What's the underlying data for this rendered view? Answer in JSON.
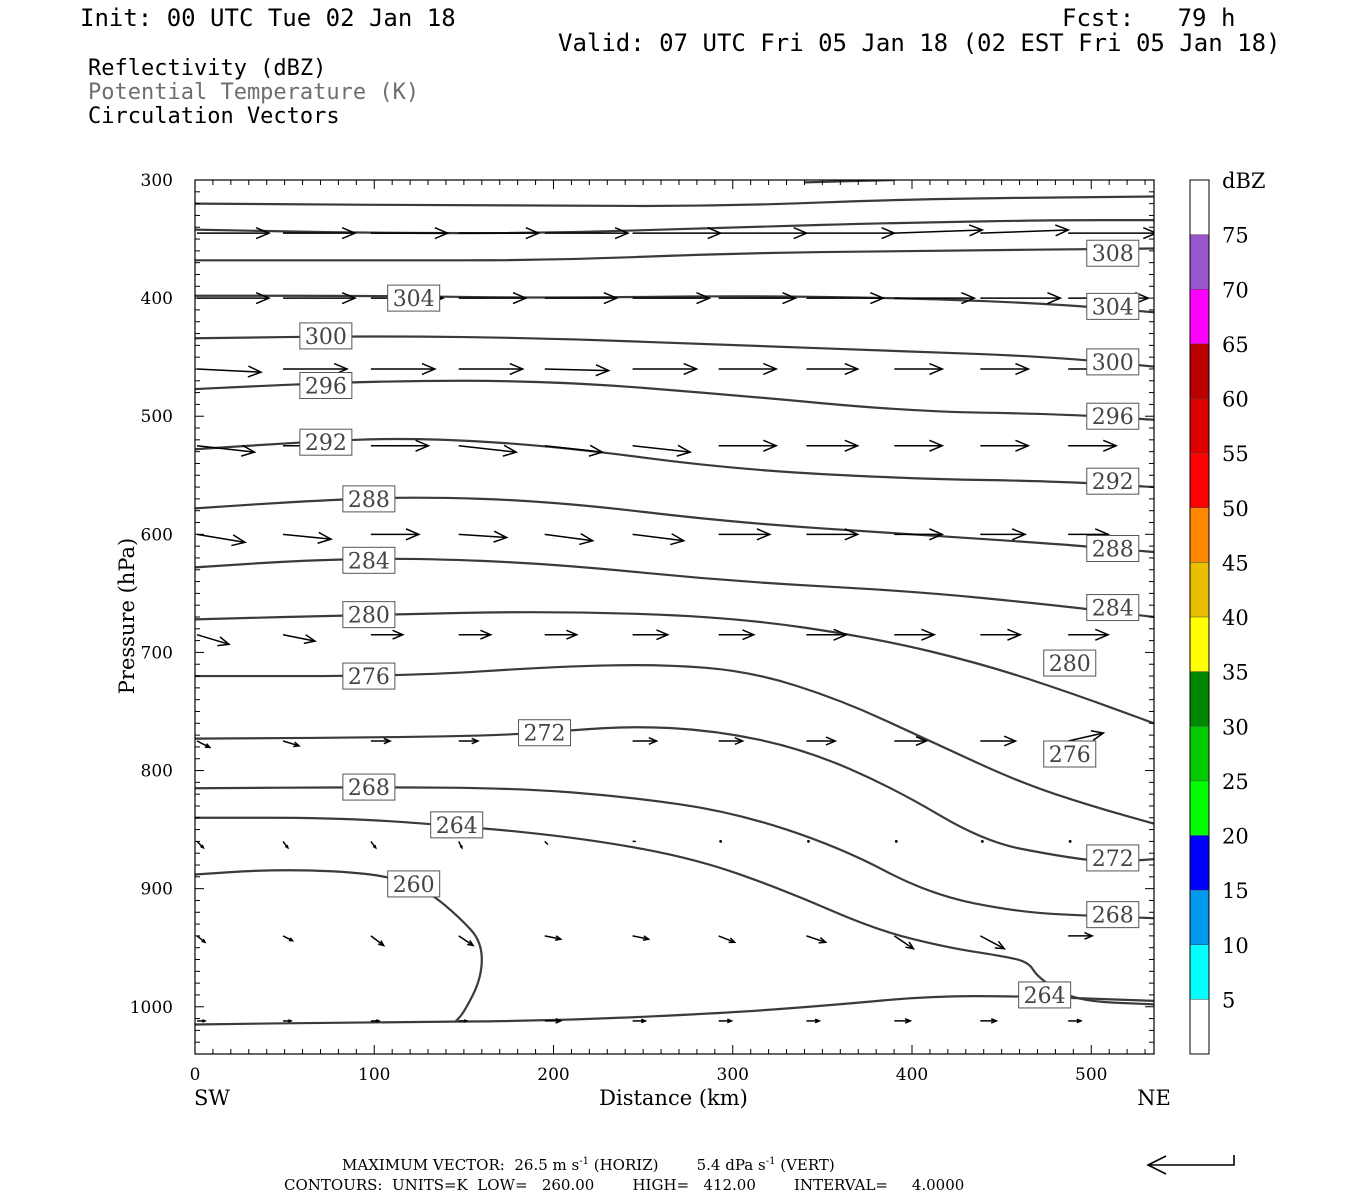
{
  "header": {
    "init": "Init: 00 UTC Tue 02 Jan 18",
    "fcst": "Fcst:   79 h",
    "valid": "Valid: 07 UTC Fri 05 Jan 18 (02 EST Fri 05 Jan 18)"
  },
  "fields": [
    "Reflectivity (dBZ)",
    "Potential Temperature (K)",
    "Circulation Vectors"
  ],
  "footer": {
    "max_prefix": "MAXIMUM VECTOR:  26.5 m s",
    "exp": "-1",
    "horiz": " (HORIZ)        5.4 dPa s",
    "vert": " (VERT)",
    "contours": "CONTOURS:  UNITS=K  LOW=   260.00        HIGH=   412.00        INTERVAL=     4.0000"
  },
  "chart_data": {
    "type": "line",
    "xlabel": "Distance (km)",
    "ylabel": "Pressure (hPa)",
    "x_ticks": [
      0,
      100,
      200,
      300,
      400,
      500
    ],
    "y_ticks": [
      300,
      400,
      500,
      600,
      700,
      800,
      900,
      1000
    ],
    "xlim": [
      0,
      535
    ],
    "ylim": [
      300,
      1040
    ],
    "y_inverted": true,
    "x_end_labels": {
      "left": "SW",
      "right": "NE"
    },
    "colorbar": {
      "title": "dBZ",
      "labels": [
        "75",
        "70",
        "65",
        "60",
        "55",
        "50",
        "45",
        "40",
        "35",
        "30",
        "25",
        "20",
        "15",
        "10",
        "5"
      ],
      "colors": [
        "#ffffff",
        "#00ffff",
        "#0099ee",
        "#0000ff",
        "#00ff00",
        "#00cc00",
        "#008800",
        "#ffff00",
        "#e8c000",
        "#ff8800",
        "#ff0000",
        "#dd0000",
        "#bb0000",
        "#ff00ff",
        "#9955cc",
        "#ffffff"
      ]
    },
    "series": [
      {
        "name": "308",
        "x": [
          0,
          100,
          200,
          300,
          400,
          535
        ],
        "y": [
          368,
          368,
          368,
          362,
          360,
          358
        ],
        "labels": [
          {
            "text": "308",
            "x": 512,
            "y": 362
          }
        ]
      },
      {
        "name": "304",
        "x": [
          0,
          100,
          200,
          300,
          400,
          480,
          535
        ],
        "y": [
          398,
          398,
          400,
          398,
          400,
          405,
          412
        ],
        "labels": [
          {
            "text": "304",
            "x": 122,
            "y": 400
          },
          {
            "text": "304",
            "x": 512,
            "y": 407
          }
        ]
      },
      {
        "name": "300",
        "x": [
          0,
          100,
          200,
          300,
          400,
          480,
          535
        ],
        "y": [
          434,
          432,
          434,
          440,
          445,
          450,
          458
        ],
        "labels": [
          {
            "text": "300",
            "x": 73,
            "y": 432
          },
          {
            "text": "300",
            "x": 512,
            "y": 454
          }
        ]
      },
      {
        "name": "296",
        "x": [
          0,
          100,
          200,
          300,
          400,
          480,
          535
        ],
        "y": [
          477,
          470,
          470,
          482,
          496,
          498,
          503
        ],
        "labels": [
          {
            "text": "296",
            "x": 73,
            "y": 474
          },
          {
            "text": "296",
            "x": 512,
            "y": 500
          }
        ]
      },
      {
        "name": "292",
        "x": [
          0,
          60,
          120,
          200,
          300,
          400,
          480,
          535
        ],
        "y": [
          528,
          522,
          518,
          525,
          545,
          553,
          555,
          560
        ],
        "labels": [
          {
            "text": "292",
            "x": 73,
            "y": 522
          },
          {
            "text": "292",
            "x": 512,
            "y": 555
          }
        ]
      },
      {
        "name": "288",
        "x": [
          0,
          60,
          120,
          200,
          300,
          400,
          480,
          535
        ],
        "y": [
          578,
          572,
          568,
          572,
          590,
          600,
          608,
          615
        ],
        "labels": [
          {
            "text": "288",
            "x": 97,
            "y": 570
          },
          {
            "text": "288",
            "x": 512,
            "y": 612
          }
        ]
      },
      {
        "name": "284",
        "x": [
          0,
          60,
          120,
          200,
          300,
          400,
          480,
          535
        ],
        "y": [
          628,
          622,
          620,
          625,
          640,
          648,
          660,
          670
        ],
        "labels": [
          {
            "text": "284",
            "x": 97,
            "y": 622
          },
          {
            "text": "284",
            "x": 512,
            "y": 662
          }
        ]
      },
      {
        "name": "280",
        "x": [
          0,
          100,
          200,
          300,
          380,
          440,
          490,
          535
        ],
        "y": [
          672,
          668,
          665,
          670,
          688,
          710,
          735,
          760
        ],
        "labels": [
          {
            "text": "280",
            "x": 97,
            "y": 668
          },
          {
            "text": "280",
            "x": 488,
            "y": 709
          }
        ]
      },
      {
        "name": "276",
        "x": [
          0,
          120,
          200,
          260,
          310,
          360,
          410,
          460,
          500,
          535
        ],
        "y": [
          720,
          720,
          712,
          710,
          716,
          740,
          775,
          810,
          830,
          845
        ],
        "labels": [
          {
            "text": "276",
            "x": 97,
            "y": 720
          },
          {
            "text": "276",
            "x": 488,
            "y": 786
          }
        ]
      },
      {
        "name": "272",
        "x": [
          0,
          100,
          180,
          240,
          290,
          340,
          390,
          440,
          480,
          510,
          535
        ],
        "y": [
          773,
          772,
          770,
          762,
          766,
          782,
          815,
          860,
          872,
          878,
          875
        ],
        "labels": [
          {
            "text": "272",
            "x": 195,
            "y": 768
          },
          {
            "text": "272",
            "x": 512,
            "y": 874
          }
        ]
      },
      {
        "name": "268",
        "x": [
          0,
          100,
          180,
          240,
          300,
          360,
          410,
          460,
          500,
          535
        ],
        "y": [
          815,
          814,
          815,
          822,
          835,
          865,
          905,
          920,
          923,
          925
        ],
        "labels": [
          {
            "text": "268",
            "x": 97,
            "y": 814
          },
          {
            "text": "268",
            "x": 512,
            "y": 922
          }
        ]
      },
      {
        "name": "264",
        "x": [
          0,
          80,
          150,
          220,
          280,
          330,
          380,
          420,
          450,
          465,
          470,
          490,
          535
        ],
        "y": [
          840,
          840,
          847,
          858,
          875,
          902,
          935,
          950,
          957,
          962,
          975,
          995,
          998
        ],
        "labels": [
          {
            "text": "264",
            "x": 146,
            "y": 846
          },
          {
            "text": "264",
            "x": 474,
            "y": 990
          }
        ]
      },
      {
        "name": "260",
        "x": [
          0,
          40,
          80,
          110,
          130,
          148,
          160,
          160,
          150,
          145
        ],
        "y": [
          888,
          884,
          885,
          890,
          902,
          925,
          945,
          975,
          1005,
          1013
        ],
        "labels": [
          {
            "text": "260",
            "x": 122,
            "y": 896
          }
        ]
      },
      {
        "name": "320",
        "x": [
          0,
          200,
          300,
          400,
          535
        ],
        "y": [
          320,
          322,
          322,
          316,
          314
        ],
        "labels": []
      },
      {
        "name": "316",
        "x": [
          0,
          100,
          200,
          300,
          400,
          480,
          535
        ],
        "y": [
          342,
          345,
          345,
          340,
          336,
          334,
          334
        ],
        "labels": []
      },
      {
        "name": "324",
        "x": [
          340,
          390
        ],
        "y": [
          302,
          300
        ],
        "labels": []
      },
      {
        "name": "surface",
        "x": [
          0,
          100,
          200,
          300,
          360,
          410,
          460,
          535
        ],
        "y": [
          1015,
          1013,
          1012,
          1005,
          998,
          991,
          991,
          995
        ],
        "labels": []
      }
    ],
    "vectors_rows": [
      {
        "y": 345,
        "x": [
          0,
          48,
          97,
          146,
          194,
          243,
          291,
          340,
          389,
          437,
          486
        ],
        "u": [
          45,
          45,
          48,
          50,
          52,
          55,
          55,
          55,
          55,
          55,
          55
        ],
        "v": [
          0,
          0,
          0,
          0,
          0,
          0,
          0,
          0,
          -2,
          -2,
          0
        ]
      },
      {
        "y": 400,
        "x": [
          0,
          48,
          97,
          146,
          194,
          243,
          291,
          340,
          389,
          437,
          486
        ],
        "u": [
          45,
          45,
          45,
          42,
          45,
          48,
          48,
          48,
          50,
          50,
          50
        ],
        "v": [
          0,
          0,
          0,
          0,
          0,
          0,
          0,
          0,
          0,
          0,
          0
        ]
      },
      {
        "y": 460,
        "x": [
          0,
          48,
          97,
          146,
          194,
          243,
          291,
          340,
          389,
          437,
          486
        ],
        "u": [
          40,
          40,
          40,
          40,
          40,
          40,
          36,
          32,
          30,
          30,
          30
        ],
        "v": [
          2,
          0,
          0,
          0,
          1,
          0,
          0,
          0,
          0,
          0,
          0
        ]
      },
      {
        "y": 525,
        "x": [
          0,
          48,
          97,
          146,
          194,
          243,
          291,
          340,
          389,
          437,
          486
        ],
        "u": [
          36,
          36,
          36,
          36,
          36,
          36,
          36,
          32,
          30,
          30,
          30
        ],
        "v": [
          4,
          0,
          0,
          4,
          4,
          4,
          0,
          0,
          0,
          0,
          0
        ]
      },
      {
        "y": 600,
        "x": [
          0,
          48,
          97,
          146,
          194,
          243,
          291,
          340,
          389,
          437,
          486
        ],
        "u": [
          30,
          30,
          30,
          30,
          30,
          32,
          32,
          32,
          30,
          28,
          25
        ],
        "v": [
          5,
          3,
          0,
          2,
          4,
          4,
          0,
          0,
          0,
          0,
          0
        ]
      },
      {
        "y": 685,
        "x": [
          0,
          48,
          97,
          146,
          194,
          243,
          291,
          340,
          389,
          437,
          486
        ],
        "u": [
          20,
          20,
          20,
          20,
          20,
          22,
          22,
          25,
          25,
          25,
          25
        ],
        "v": [
          6,
          4,
          0,
          0,
          0,
          0,
          0,
          0,
          0,
          0,
          0
        ]
      },
      {
        "y": 775,
        "x": [
          0,
          48,
          97,
          146,
          194,
          243,
          291,
          340,
          389,
          437,
          486
        ],
        "u": [
          8,
          10,
          12,
          12,
          12,
          15,
          15,
          18,
          20,
          22,
          22
        ],
        "v": [
          4,
          3,
          0,
          0,
          0,
          0,
          0,
          0,
          0,
          0,
          -5
        ]
      },
      {
        "y": 860,
        "x": [
          0,
          48,
          97,
          146,
          194,
          243,
          291,
          340,
          389,
          437,
          486
        ],
        "u": [
          4,
          3,
          3,
          2,
          2,
          2,
          0,
          0,
          0,
          0,
          0
        ],
        "v": [
          4,
          4,
          4,
          4,
          2,
          0,
          0,
          0,
          0,
          0,
          0
        ]
      },
      {
        "y": 940,
        "x": [
          0,
          48,
          97,
          146,
          194,
          243,
          291,
          340,
          389,
          437,
          486
        ],
        "u": [
          5,
          6,
          8,
          9,
          10,
          10,
          10,
          12,
          12,
          15,
          15
        ],
        "v": [
          4,
          3,
          6,
          6,
          2,
          2,
          4,
          4,
          8,
          8,
          0
        ]
      },
      {
        "y": 1012,
        "x": [
          0,
          48,
          97,
          146,
          194,
          243,
          291,
          340,
          389,
          437,
          486
        ],
        "u": [
          5,
          5,
          5,
          5,
          10,
          8,
          8,
          8,
          10,
          10,
          8
        ],
        "v": [
          0,
          0,
          0,
          0,
          0,
          0,
          0,
          0,
          0,
          0,
          0
        ]
      }
    ]
  }
}
